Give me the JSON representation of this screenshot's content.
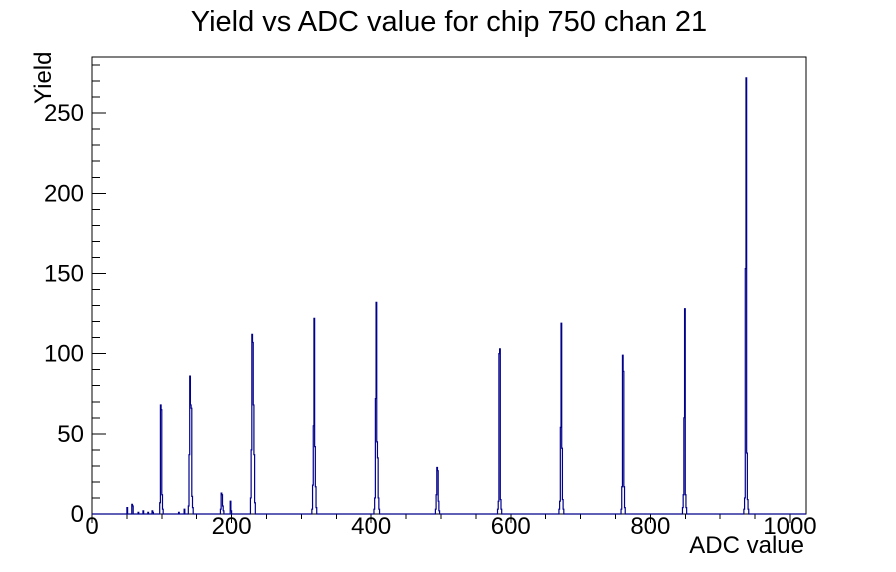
{
  "chart_data": {
    "type": "bar",
    "subtype": "root-histogram-outline",
    "title": "Yield vs ADC value for chip 750 chan 21",
    "xlabel": "ADC value",
    "ylabel": "Yield",
    "xlim": [
      0,
      1023
    ],
    "ylim": [
      0,
      285
    ],
    "grid": false,
    "legend": "none",
    "x_major_ticks": [
      {
        "value": 0,
        "label": "0"
      },
      {
        "value": 200,
        "label": "200"
      },
      {
        "value": 400,
        "label": "400"
      },
      {
        "value": 600,
        "label": "600"
      },
      {
        "value": 800,
        "label": "800"
      },
      {
        "value": 1000,
        "label": "1000"
      }
    ],
    "x_minor_step": 50,
    "y_major_ticks": [
      {
        "value": 0,
        "label": "0"
      },
      {
        "value": 50,
        "label": "50"
      },
      {
        "value": 100,
        "label": "100"
      },
      {
        "value": 150,
        "label": "150"
      },
      {
        "value": 200,
        "label": "200"
      },
      {
        "value": 250,
        "label": "250"
      }
    ],
    "y_minor_step": 10,
    "bin_width_adc": 1,
    "peak_summary": [
      {
        "adc": 99,
        "yield": 68
      },
      {
        "adc": 141,
        "yield": 86
      },
      {
        "adc": 185,
        "yield": 13
      },
      {
        "adc": 230,
        "yield": 112
      },
      {
        "adc": 318,
        "yield": 122
      },
      {
        "adc": 407,
        "yield": 132
      },
      {
        "adc": 495,
        "yield": 29
      },
      {
        "adc": 584,
        "yield": 103
      },
      {
        "adc": 672,
        "yield": 119
      },
      {
        "adc": 761,
        "yield": 99
      },
      {
        "adc": 849,
        "yield": 128
      },
      {
        "adc": 938,
        "yield": 272
      }
    ],
    "bin_clusters": [
      {
        "start": 50,
        "heights": [
          4
        ]
      },
      {
        "start": 57,
        "heights": [
          6,
          5
        ]
      },
      {
        "start": 66,
        "heights": [
          1
        ]
      },
      {
        "start": 73,
        "heights": [
          2
        ]
      },
      {
        "start": 80,
        "heights": [
          1
        ]
      },
      {
        "start": 86,
        "heights": [
          2,
          1
        ]
      },
      {
        "start": 97,
        "heights": [
          7,
          68,
          65,
          12,
          3
        ]
      },
      {
        "start": 124,
        "heights": [
          1
        ]
      },
      {
        "start": 132,
        "heights": [
          3
        ]
      },
      {
        "start": 138,
        "heights": [
          5,
          37,
          86,
          68,
          66,
          11,
          4
        ]
      },
      {
        "start": 184,
        "heights": [
          3,
          13,
          12,
          5,
          2
        ]
      },
      {
        "start": 198,
        "heights": [
          8,
          2
        ]
      },
      {
        "start": 227,
        "heights": [
          10,
          40,
          112,
          107,
          68,
          37,
          7
        ]
      },
      {
        "start": 315,
        "heights": [
          3,
          18,
          55,
          122,
          42,
          17,
          4
        ]
      },
      {
        "start": 404,
        "heights": [
          3,
          10,
          72,
          132,
          45,
          35,
          10,
          3
        ]
      },
      {
        "start": 492,
        "heights": [
          3,
          12,
          29,
          27,
          8,
          2
        ]
      },
      {
        "start": 581,
        "heights": [
          3,
          8,
          100,
          103,
          9,
          3
        ]
      },
      {
        "start": 669,
        "heights": [
          3,
          8,
          54,
          119,
          41,
          9,
          3
        ]
      },
      {
        "start": 758,
        "heights": [
          3,
          17,
          99,
          89,
          17,
          4
        ]
      },
      {
        "start": 846,
        "heights": [
          4,
          12,
          60,
          128,
          12,
          4
        ]
      },
      {
        "start": 934,
        "heights": [
          3,
          10,
          153,
          272,
          38,
          9,
          3
        ]
      }
    ],
    "colors": {
      "line": "#00008b",
      "axis": "#000000",
      "text": "#000000",
      "background": "#ffffff"
    }
  }
}
